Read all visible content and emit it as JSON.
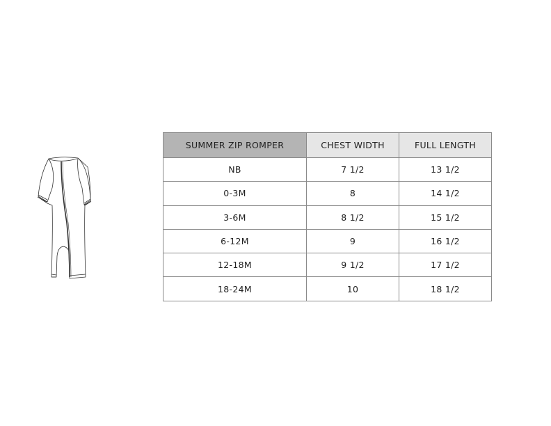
{
  "illustration": {
    "name": "summer zip romper line drawing"
  },
  "table": {
    "headers": [
      "SUMMER ZIP ROMPER",
      "CHEST WIDTH",
      "FULL LENGTH"
    ],
    "header_colors": [
      "#b4b4b4",
      "#e6e6e6",
      "#e6e6e6"
    ],
    "rows": [
      [
        "NB",
        "7 1/2",
        "13 1/2"
      ],
      [
        "0-3M",
        "8",
        "14 1/2"
      ],
      [
        "3-6M",
        "8 1/2",
        "15 1/2"
      ],
      [
        "6-12M",
        "9",
        "16 1/2"
      ],
      [
        "12-18M",
        "9 1/2",
        "17 1/2"
      ],
      [
        "18-24M",
        "10",
        "18 1/2"
      ]
    ]
  }
}
